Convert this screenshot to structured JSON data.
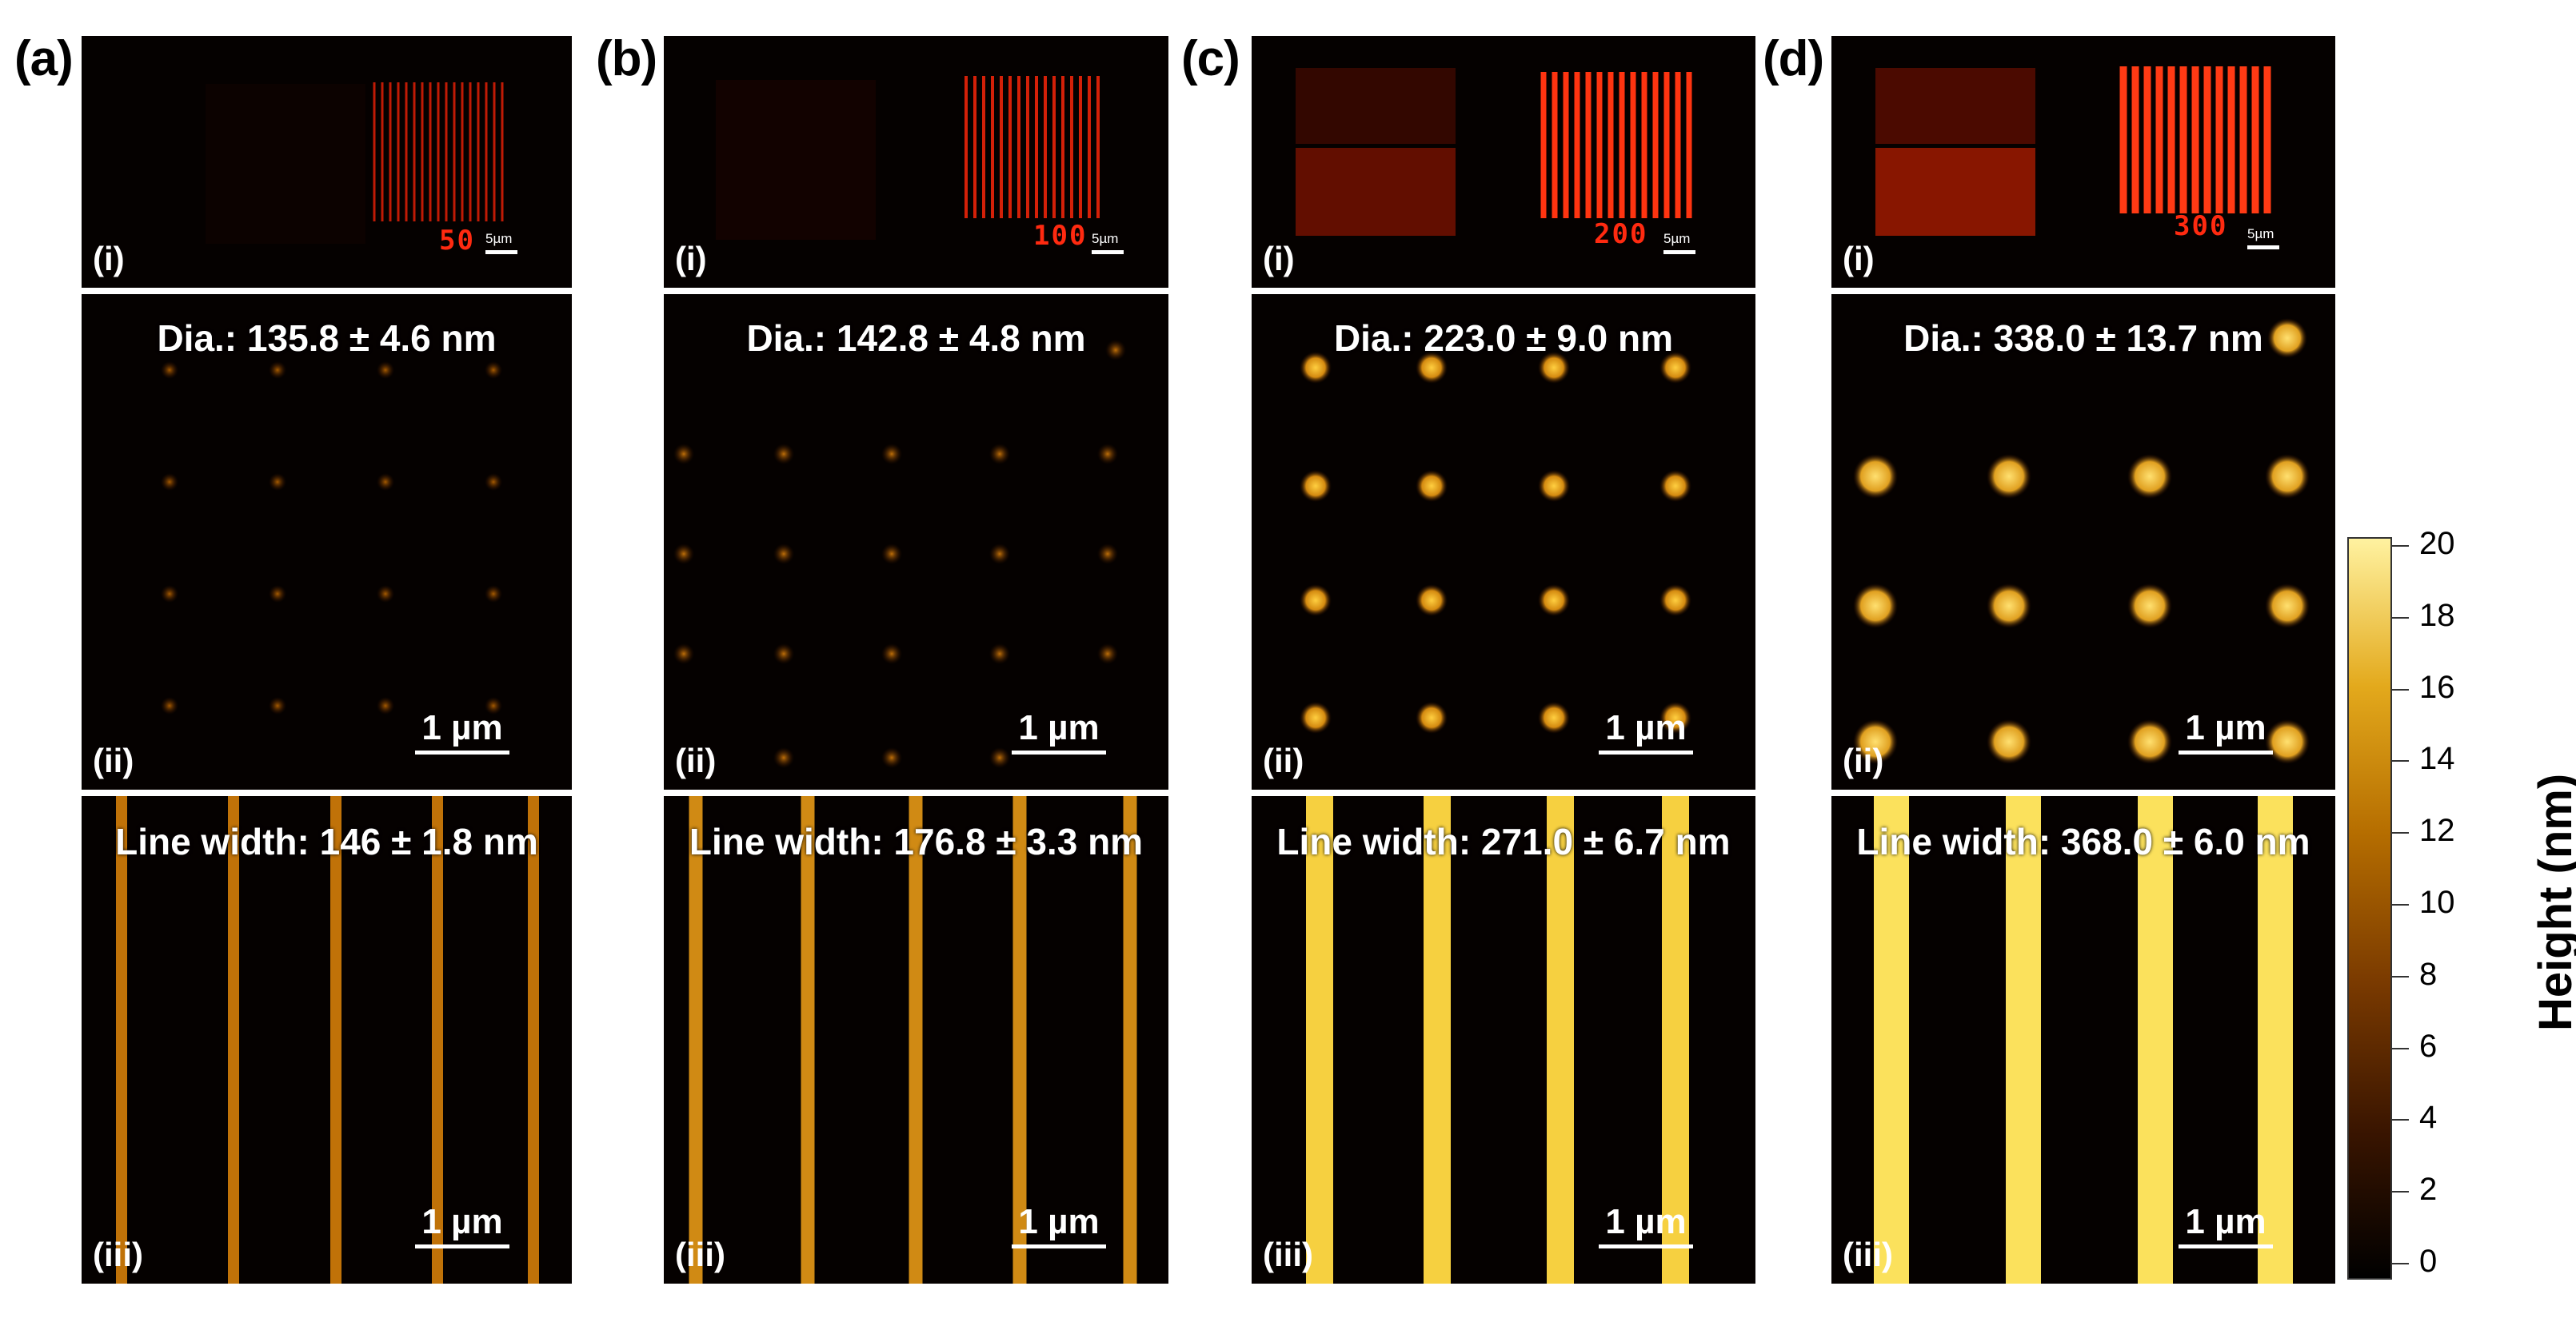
{
  "columns": [
    {
      "label": "(a)",
      "top": {
        "sublabel": "(i)",
        "dose": "50",
        "scale": "5µm"
      },
      "middle": {
        "sublabel": "(ii)",
        "annotation": "Dia.: 135.8 ± 4.6 nm",
        "scale": "1 µm"
      },
      "bottom": {
        "sublabel": "(iii)",
        "annotation": "Line width: 146 ± 1.8 nm",
        "scale": "1 µm"
      }
    },
    {
      "label": "(b)",
      "top": {
        "sublabel": "(i)",
        "dose": "100",
        "scale": "5µm"
      },
      "middle": {
        "sublabel": "(ii)",
        "annotation": "Dia.: 142.8 ± 4.8 nm",
        "scale": "1 µm"
      },
      "bottom": {
        "sublabel": "(iii)",
        "annotation": "Line width: 176.8 ± 3.3 nm",
        "scale": "1 µm"
      }
    },
    {
      "label": "(c)",
      "top": {
        "sublabel": "(i)",
        "dose": "200",
        "scale": "5µm"
      },
      "middle": {
        "sublabel": "(ii)",
        "annotation": "Dia.: 223.0 ± 9.0 nm",
        "scale": "1 µm"
      },
      "bottom": {
        "sublabel": "(iii)",
        "annotation": "Line width: 271.0 ± 6.7 nm",
        "scale": "1 µm"
      }
    },
    {
      "label": "(d)",
      "top": {
        "sublabel": "(i)",
        "dose": "300",
        "scale": "5µm"
      },
      "middle": {
        "sublabel": "(ii)",
        "annotation": "Dia.: 338.0 ± 13.7 nm",
        "scale": "1 µm"
      },
      "bottom": {
        "sublabel": "(iii)",
        "annotation": "Line width: 368.0 ± 6.0 nm",
        "scale": "1 µm"
      }
    }
  ],
  "colorbar": {
    "title": "Height (nm)",
    "ticks": [
      "20",
      "18",
      "16",
      "14",
      "12",
      "10",
      "8",
      "6",
      "4",
      "2",
      "0"
    ],
    "colors": [
      "#000000",
      "#3a1500",
      "#7a3a00",
      "#b56d00",
      "#e3a91c",
      "#fff2a0"
    ]
  }
}
